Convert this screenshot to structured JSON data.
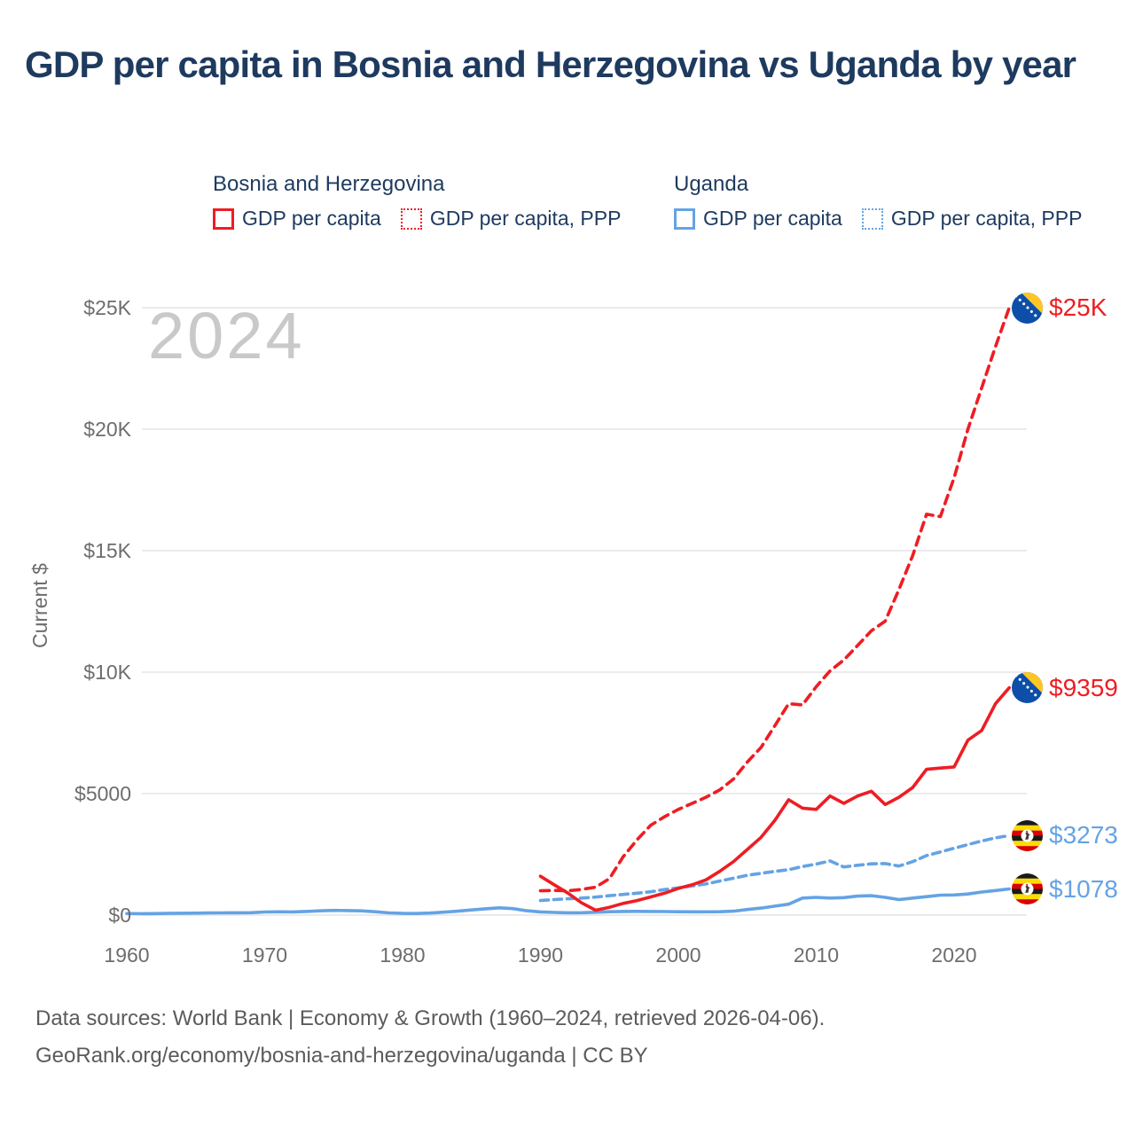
{
  "title": "GDP per capita in Bosnia and Herzegovina vs Uganda by year",
  "watermark_year": "2024",
  "legend": {
    "groups": [
      {
        "name": "Bosnia and Herzegovina",
        "color": "#ee1d23",
        "items": [
          {
            "label": "GDP per capita",
            "style": "solid"
          },
          {
            "label": "GDP per capita, PPP",
            "style": "dotted"
          }
        ]
      },
      {
        "name": "Uganda",
        "color": "#64a3e4",
        "items": [
          {
            "label": "GDP per capita",
            "style": "solid"
          },
          {
            "label": "GDP per capita, PPP",
            "style": "dotted"
          }
        ]
      }
    ]
  },
  "y_axis": {
    "label": "Current $",
    "ticks": [
      {
        "label": "$0",
        "value": 0
      },
      {
        "label": "$5000",
        "value": 5000
      },
      {
        "label": "$10K",
        "value": 10000
      },
      {
        "label": "$15K",
        "value": 15000
      },
      {
        "label": "$20K",
        "value": 20000
      },
      {
        "label": "$25K",
        "value": 25000
      }
    ]
  },
  "x_axis": {
    "ticks": [
      {
        "label": "1960",
        "value": 1960
      },
      {
        "label": "1970",
        "value": 1970
      },
      {
        "label": "1980",
        "value": 1980
      },
      {
        "label": "1990",
        "value": 1990
      },
      {
        "label": "2000",
        "value": 2000
      },
      {
        "label": "2010",
        "value": 2010
      },
      {
        "label": "2020",
        "value": 2020
      }
    ]
  },
  "end_labels": [
    {
      "label": "$25K",
      "value": 25000,
      "flag": "bosnia-and-herzegovina",
      "color": "#ee1d23",
      "series": "Bosnia and Herzegovina — GDP per capita, PPP"
    },
    {
      "label": "$9359",
      "value": 9359,
      "flag": "bosnia-and-herzegovina",
      "color": "#ee1d23",
      "series": "Bosnia and Herzegovina — GDP per capita"
    },
    {
      "label": "$3273",
      "value": 3273,
      "flag": "uganda",
      "color": "#64a3e4",
      "series": "Uganda — GDP per capita, PPP"
    },
    {
      "label": "$1078",
      "value": 1078,
      "flag": "uganda",
      "color": "#64a3e4",
      "series": "Uganda — GDP per capita"
    }
  ],
  "footer": {
    "line1": "Data sources: World Bank | Economy & Growth (1960–2024, retrieved 2026-04-06).",
    "line2": "GeoRank.org/economy/bosnia-and-herzegovina/uganda | CC BY"
  },
  "colors": {
    "bosnia_red": "#ee1d23",
    "uganda_blue": "#64a3e4",
    "title_navy": "#1e3a5f",
    "axis_gray": "#6d6d6d",
    "watermark_gray": "#c9c9c9",
    "gridline_gray": "#ebebeb",
    "footer_gray": "#5b5b5d"
  },
  "chart_data": {
    "type": "line",
    "title": "GDP per capita in Bosnia and Herzegovina vs Uganda by year",
    "xlabel": "",
    "ylabel": "Current $",
    "x_range": [
      1958.5,
      2026
    ],
    "ylim": [
      0,
      25000
    ],
    "grid": "horizontal",
    "legend_position": "top",
    "note": "values are approximate chart readings in current US$",
    "series": [
      {
        "name": "Bosnia and Herzegovina — GDP per capita",
        "country": "Bosnia and Herzegovina",
        "metric": "GDP per capita",
        "color": "#ee1d23",
        "line_style": "solid",
        "start_year": 1990,
        "end_year": 2024,
        "end_value_label": "$9359",
        "values": [
          1600,
          1250,
          900,
          500,
          200,
          320,
          480,
          600,
          750,
          900,
          1100,
          1250,
          1450,
          1800,
          2200,
          2700,
          3200,
          3900,
          4750,
          4400,
          4350,
          4900,
          4600,
          4900,
          5100,
          4550,
          4850,
          5250,
          6000,
          6050,
          6100,
          7200,
          7600,
          8700,
          9359
        ]
      },
      {
        "name": "Bosnia and Herzegovina — GDP per capita, PPP",
        "country": "Bosnia and Herzegovina",
        "metric": "GDP per capita, PPP",
        "color": "#ee1d23",
        "line_style": "dashed",
        "start_year": 1990,
        "end_year": 2024,
        "end_value_label": "$25K",
        "values": [
          1000,
          1020,
          1000,
          1060,
          1150,
          1500,
          2400,
          3100,
          3700,
          4050,
          4350,
          4600,
          4850,
          5150,
          5600,
          6300,
          6900,
          7800,
          8700,
          8650,
          9400,
          10050,
          10500,
          11100,
          11700,
          12100,
          13400,
          14800,
          16500,
          16400,
          18000,
          20000,
          21700,
          23400,
          25000
        ]
      },
      {
        "name": "Uganda — GDP per capita",
        "country": "Uganda",
        "metric": "GDP per capita",
        "color": "#64a3e4",
        "line_style": "solid",
        "start_year": 1960,
        "end_year": 2024,
        "end_value_label": "$1078",
        "values": [
          62,
          60,
          62,
          68,
          75,
          82,
          86,
          90,
          95,
          100,
          128,
          135,
          130,
          150,
          175,
          195,
          185,
          175,
          140,
          90,
          70,
          65,
          85,
          120,
          160,
          210,
          260,
          300,
          265,
          180,
          130,
          110,
          95,
          100,
          115,
          140,
          150,
          155,
          150,
          145,
          140,
          135,
          135,
          140,
          160,
          230,
          290,
          370,
          450,
          700,
          730,
          700,
          720,
          780,
          800,
          730,
          640,
          700,
          760,
          820,
          830,
          870,
          950,
          1010,
          1078
        ]
      },
      {
        "name": "Uganda — GDP per capita, PPP",
        "country": "Uganda",
        "metric": "GDP per capita, PPP",
        "color": "#64a3e4",
        "line_style": "dashed",
        "start_year": 1990,
        "end_year": 2024,
        "end_value_label": "$3273",
        "values": [
          600,
          640,
          670,
          700,
          740,
          800,
          850,
          900,
          960,
          1050,
          1120,
          1200,
          1280,
          1400,
          1520,
          1640,
          1720,
          1800,
          1870,
          2000,
          2100,
          2230,
          1980,
          2050,
          2110,
          2120,
          2020,
          2200,
          2450,
          2600,
          2750,
          2900,
          3050,
          3180,
          3273
        ]
      }
    ]
  }
}
